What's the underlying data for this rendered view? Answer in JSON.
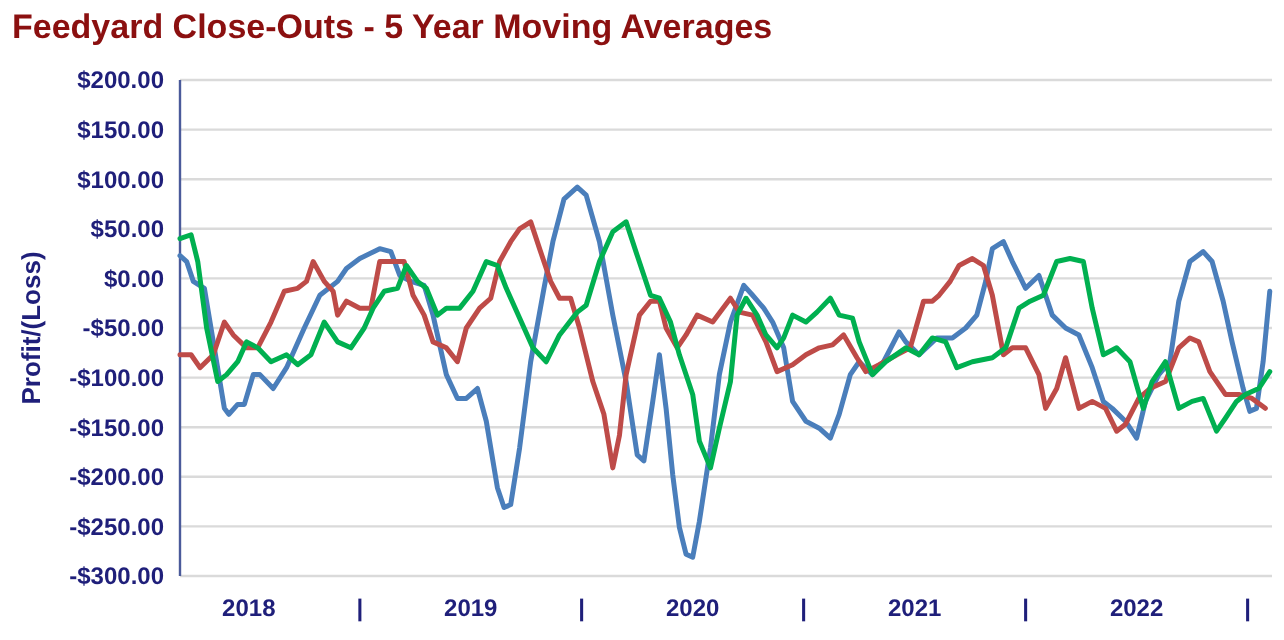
{
  "chart_data": {
    "type": "line",
    "title": "Feedyard Close-Outs - 5 Year Moving Averages",
    "ylabel": "Profit/(Loss)",
    "xlim": [
      2018.19,
      2023.11
    ],
    "xticks": [
      {
        "value": 2018.5,
        "label": "2018"
      },
      {
        "value": 2019,
        "label": "|"
      },
      {
        "value": 2019.5,
        "label": "2019"
      },
      {
        "value": 2020,
        "label": "|"
      },
      {
        "value": 2020.5,
        "label": "2020"
      },
      {
        "value": 2021,
        "label": "|"
      },
      {
        "value": 2021.5,
        "label": "2021"
      },
      {
        "value": 2022,
        "label": "|"
      },
      {
        "value": 2022.5,
        "label": "2022"
      },
      {
        "value": 2023,
        "label": "|"
      }
    ],
    "ylim": [
      -300,
      200
    ],
    "yticks": [
      {
        "value": -300,
        "label": "-$300.00"
      },
      {
        "value": -250,
        "label": "-$250.00"
      },
      {
        "value": -200,
        "label": "-$200.00"
      },
      {
        "value": -150,
        "label": "-$150.00"
      },
      {
        "value": -100,
        "label": "-$100.00"
      },
      {
        "value": -50,
        "label": "-$50.00"
      },
      {
        "value": 0,
        "label": "$0.00"
      },
      {
        "value": 50,
        "label": "$50.00"
      },
      {
        "value": 100,
        "label": "$100.00"
      },
      {
        "value": 150,
        "label": "$150.00"
      },
      {
        "value": 200,
        "label": "$200.00"
      }
    ],
    "grid": "y",
    "marker": "none",
    "line_style": "solid",
    "series": [
      {
        "color": "#4a7ebb",
        "x": [
          2018.19,
          2018.22,
          2018.25,
          2018.3,
          2018.34,
          2018.39,
          2018.41,
          2018.45,
          2018.48,
          2018.52,
          2018.55,
          2018.61,
          2018.67,
          2018.75,
          2018.82,
          2018.9,
          2018.94,
          2019.0,
          2019.09,
          2019.14,
          2019.18,
          2019.23,
          2019.29,
          2019.33,
          2019.39,
          2019.44,
          2019.48,
          2019.53,
          2019.57,
          2019.62,
          2019.65,
          2019.68,
          2019.72,
          2019.77,
          2019.83,
          2019.87,
          2019.92,
          2019.98,
          2020.02,
          2020.08,
          2020.14,
          2020.2,
          2020.25,
          2020.28,
          2020.32,
          2020.35,
          2020.38,
          2020.41,
          2020.44,
          2020.47,
          2020.5,
          2020.53,
          2020.58,
          2020.62,
          2020.67,
          2020.73,
          2020.77,
          2020.82,
          2020.86,
          2020.91,
          2020.95,
          2021.01,
          2021.07,
          2021.12,
          2021.16,
          2021.21,
          2021.25,
          2021.31,
          2021.36,
          2021.43,
          2021.46,
          2021.52,
          2021.6,
          2021.67,
          2021.73,
          2021.78,
          2021.82,
          2021.85,
          2021.9,
          2021.94,
          2022.0,
          2022.06,
          2022.12,
          2022.18,
          2022.24,
          2022.3,
          2022.35,
          2022.39,
          2022.45,
          2022.5,
          2022.54,
          2022.6,
          2022.65,
          2022.69,
          2022.74,
          2022.8,
          2022.84,
          2022.89,
          2022.93,
          2022.98,
          2023.01,
          2023.04,
          2023.07,
          2023.1
        ],
        "values": [
          23,
          17,
          -3,
          -10,
          -64,
          -131,
          -137,
          -127,
          -127,
          -97,
          -97,
          -111,
          -90,
          -50,
          -17,
          -3,
          10,
          20,
          30,
          27,
          3,
          -3,
          -7,
          -37,
          -97,
          -121,
          -121,
          -111,
          -144,
          -211,
          -231,
          -228,
          -171,
          -84,
          -10,
          37,
          80,
          92,
          84,
          37,
          -37,
          -104,
          -178,
          -184,
          -124,
          -77,
          -131,
          -198,
          -251,
          -278,
          -281,
          -245,
          -171,
          -97,
          -44,
          -7,
          -17,
          -30,
          -44,
          -70,
          -124,
          -144,
          -151,
          -161,
          -137,
          -97,
          -84,
          -97,
          -84,
          -54,
          -64,
          -77,
          -60,
          -60,
          -50,
          -37,
          -3,
          30,
          37,
          17,
          -10,
          3,
          -37,
          -50,
          -57,
          -90,
          -124,
          -131,
          -144,
          -161,
          -124,
          -97,
          -84,
          -23,
          17,
          27,
          17,
          -23,
          -64,
          -111,
          -134,
          -131,
          -84,
          -13
        ]
      },
      {
        "color": "#be4b48",
        "x": [
          2018.19,
          2018.24,
          2018.28,
          2018.34,
          2018.39,
          2018.43,
          2018.49,
          2018.54,
          2018.6,
          2018.66,
          2018.72,
          2018.76,
          2018.79,
          2018.84,
          2018.88,
          2018.9,
          2018.94,
          2019.0,
          2019.05,
          2019.09,
          2019.14,
          2019.2,
          2019.24,
          2019.29,
          2019.33,
          2019.39,
          2019.44,
          2019.48,
          2019.54,
          2019.59,
          2019.63,
          2019.68,
          2019.72,
          2019.77,
          2019.81,
          2019.86,
          2019.9,
          2019.95,
          2019.99,
          2020.05,
          2020.1,
          2020.14,
          2020.17,
          2020.2,
          2020.26,
          2020.31,
          2020.35,
          2020.38,
          2020.43,
          2020.47,
          2020.52,
          2020.59,
          2020.67,
          2020.71,
          2020.77,
          2020.83,
          2020.88,
          2020.95,
          2021.01,
          2021.07,
          2021.13,
          2021.18,
          2021.24,
          2021.28,
          2021.34,
          2021.42,
          2021.48,
          2021.54,
          2021.58,
          2021.61,
          2021.66,
          2021.7,
          2021.76,
          2021.81,
          2021.85,
          2021.9,
          2021.94,
          2022.0,
          2022.06,
          2022.09,
          2022.14,
          2022.18,
          2022.24,
          2022.3,
          2022.36,
          2022.41,
          2022.45,
          2022.51,
          2022.56,
          2022.63,
          2022.69,
          2022.74,
          2022.78,
          2022.83,
          2022.9,
          2022.96,
          2023.02,
          2023.08
        ],
        "values": [
          -77,
          -77,
          -90,
          -77,
          -44,
          -57,
          -70,
          -70,
          -44,
          -13,
          -10,
          -3,
          17,
          -3,
          -13,
          -37,
          -23,
          -30,
          -30,
          17,
          17,
          17,
          -17,
          -37,
          -64,
          -70,
          -84,
          -50,
          -30,
          -20,
          17,
          37,
          50,
          57,
          30,
          -3,
          -20,
          -20,
          -50,
          -104,
          -137,
          -191,
          -158,
          -97,
          -37,
          -23,
          -23,
          -50,
          -70,
          -57,
          -37,
          -44,
          -20,
          -34,
          -37,
          -64,
          -94,
          -87,
          -77,
          -70,
          -67,
          -57,
          -80,
          -94,
          -87,
          -77,
          -70,
          -23,
          -23,
          -17,
          -3,
          13,
          20,
          13,
          -17,
          -77,
          -70,
          -70,
          -97,
          -131,
          -111,
          -80,
          -131,
          -124,
          -131,
          -154,
          -147,
          -121,
          -111,
          -104,
          -70,
          -60,
          -64,
          -94,
          -117,
          -117,
          -121,
          -131
        ]
      },
      {
        "color": "#00b050",
        "x": [
          2018.19,
          2018.24,
          2018.27,
          2018.31,
          2018.36,
          2018.4,
          2018.45,
          2018.49,
          2018.54,
          2018.6,
          2018.67,
          2018.72,
          2018.78,
          2018.84,
          2018.9,
          2018.96,
          2019.02,
          2019.06,
          2019.11,
          2019.17,
          2019.21,
          2019.26,
          2019.3,
          2019.35,
          2019.39,
          2019.45,
          2019.51,
          2019.57,
          2019.62,
          2019.66,
          2019.72,
          2019.78,
          2019.84,
          2019.9,
          2019.98,
          2020.02,
          2020.08,
          2020.14,
          2020.2,
          2020.25,
          2020.31,
          2020.35,
          2020.4,
          2020.44,
          2020.5,
          2020.53,
          2020.58,
          2020.62,
          2020.67,
          2020.7,
          2020.74,
          2020.79,
          2020.83,
          2020.88,
          2020.91,
          2020.95,
          2021.01,
          2021.06,
          2021.12,
          2021.16,
          2021.22,
          2021.25,
          2021.31,
          2021.37,
          2021.46,
          2021.52,
          2021.58,
          2021.64,
          2021.69,
          2021.76,
          2021.85,
          2021.91,
          2021.97,
          2022.02,
          2022.08,
          2022.14,
          2022.2,
          2022.26,
          2022.3,
          2022.35,
          2022.41,
          2022.47,
          2022.53,
          2022.57,
          2022.63,
          2022.69,
          2022.75,
          2022.8,
          2022.86,
          2022.9,
          2022.95,
          2022.99,
          2023.05,
          2023.1
        ],
        "values": [
          40,
          44,
          17,
          -50,
          -104,
          -97,
          -84,
          -64,
          -70,
          -84,
          -77,
          -87,
          -77,
          -44,
          -64,
          -70,
          -50,
          -30,
          -13,
          -10,
          13,
          -3,
          -10,
          -37,
          -30,
          -30,
          -13,
          17,
          13,
          -10,
          -40,
          -70,
          -84,
          -57,
          -34,
          -27,
          17,
          47,
          57,
          23,
          -17,
          -20,
          -44,
          -77,
          -117,
          -164,
          -191,
          -151,
          -104,
          -37,
          -20,
          -37,
          -57,
          -70,
          -60,
          -37,
          -44,
          -34,
          -20,
          -37,
          -40,
          -64,
          -97,
          -84,
          -70,
          -77,
          -60,
          -64,
          -90,
          -84,
          -80,
          -70,
          -30,
          -23,
          -17,
          17,
          20,
          17,
          -30,
          -77,
          -70,
          -84,
          -131,
          -104,
          -84,
          -131,
          -124,
          -121,
          -154,
          -141,
          -124,
          -117,
          -111,
          -94
        ]
      }
    ]
  }
}
